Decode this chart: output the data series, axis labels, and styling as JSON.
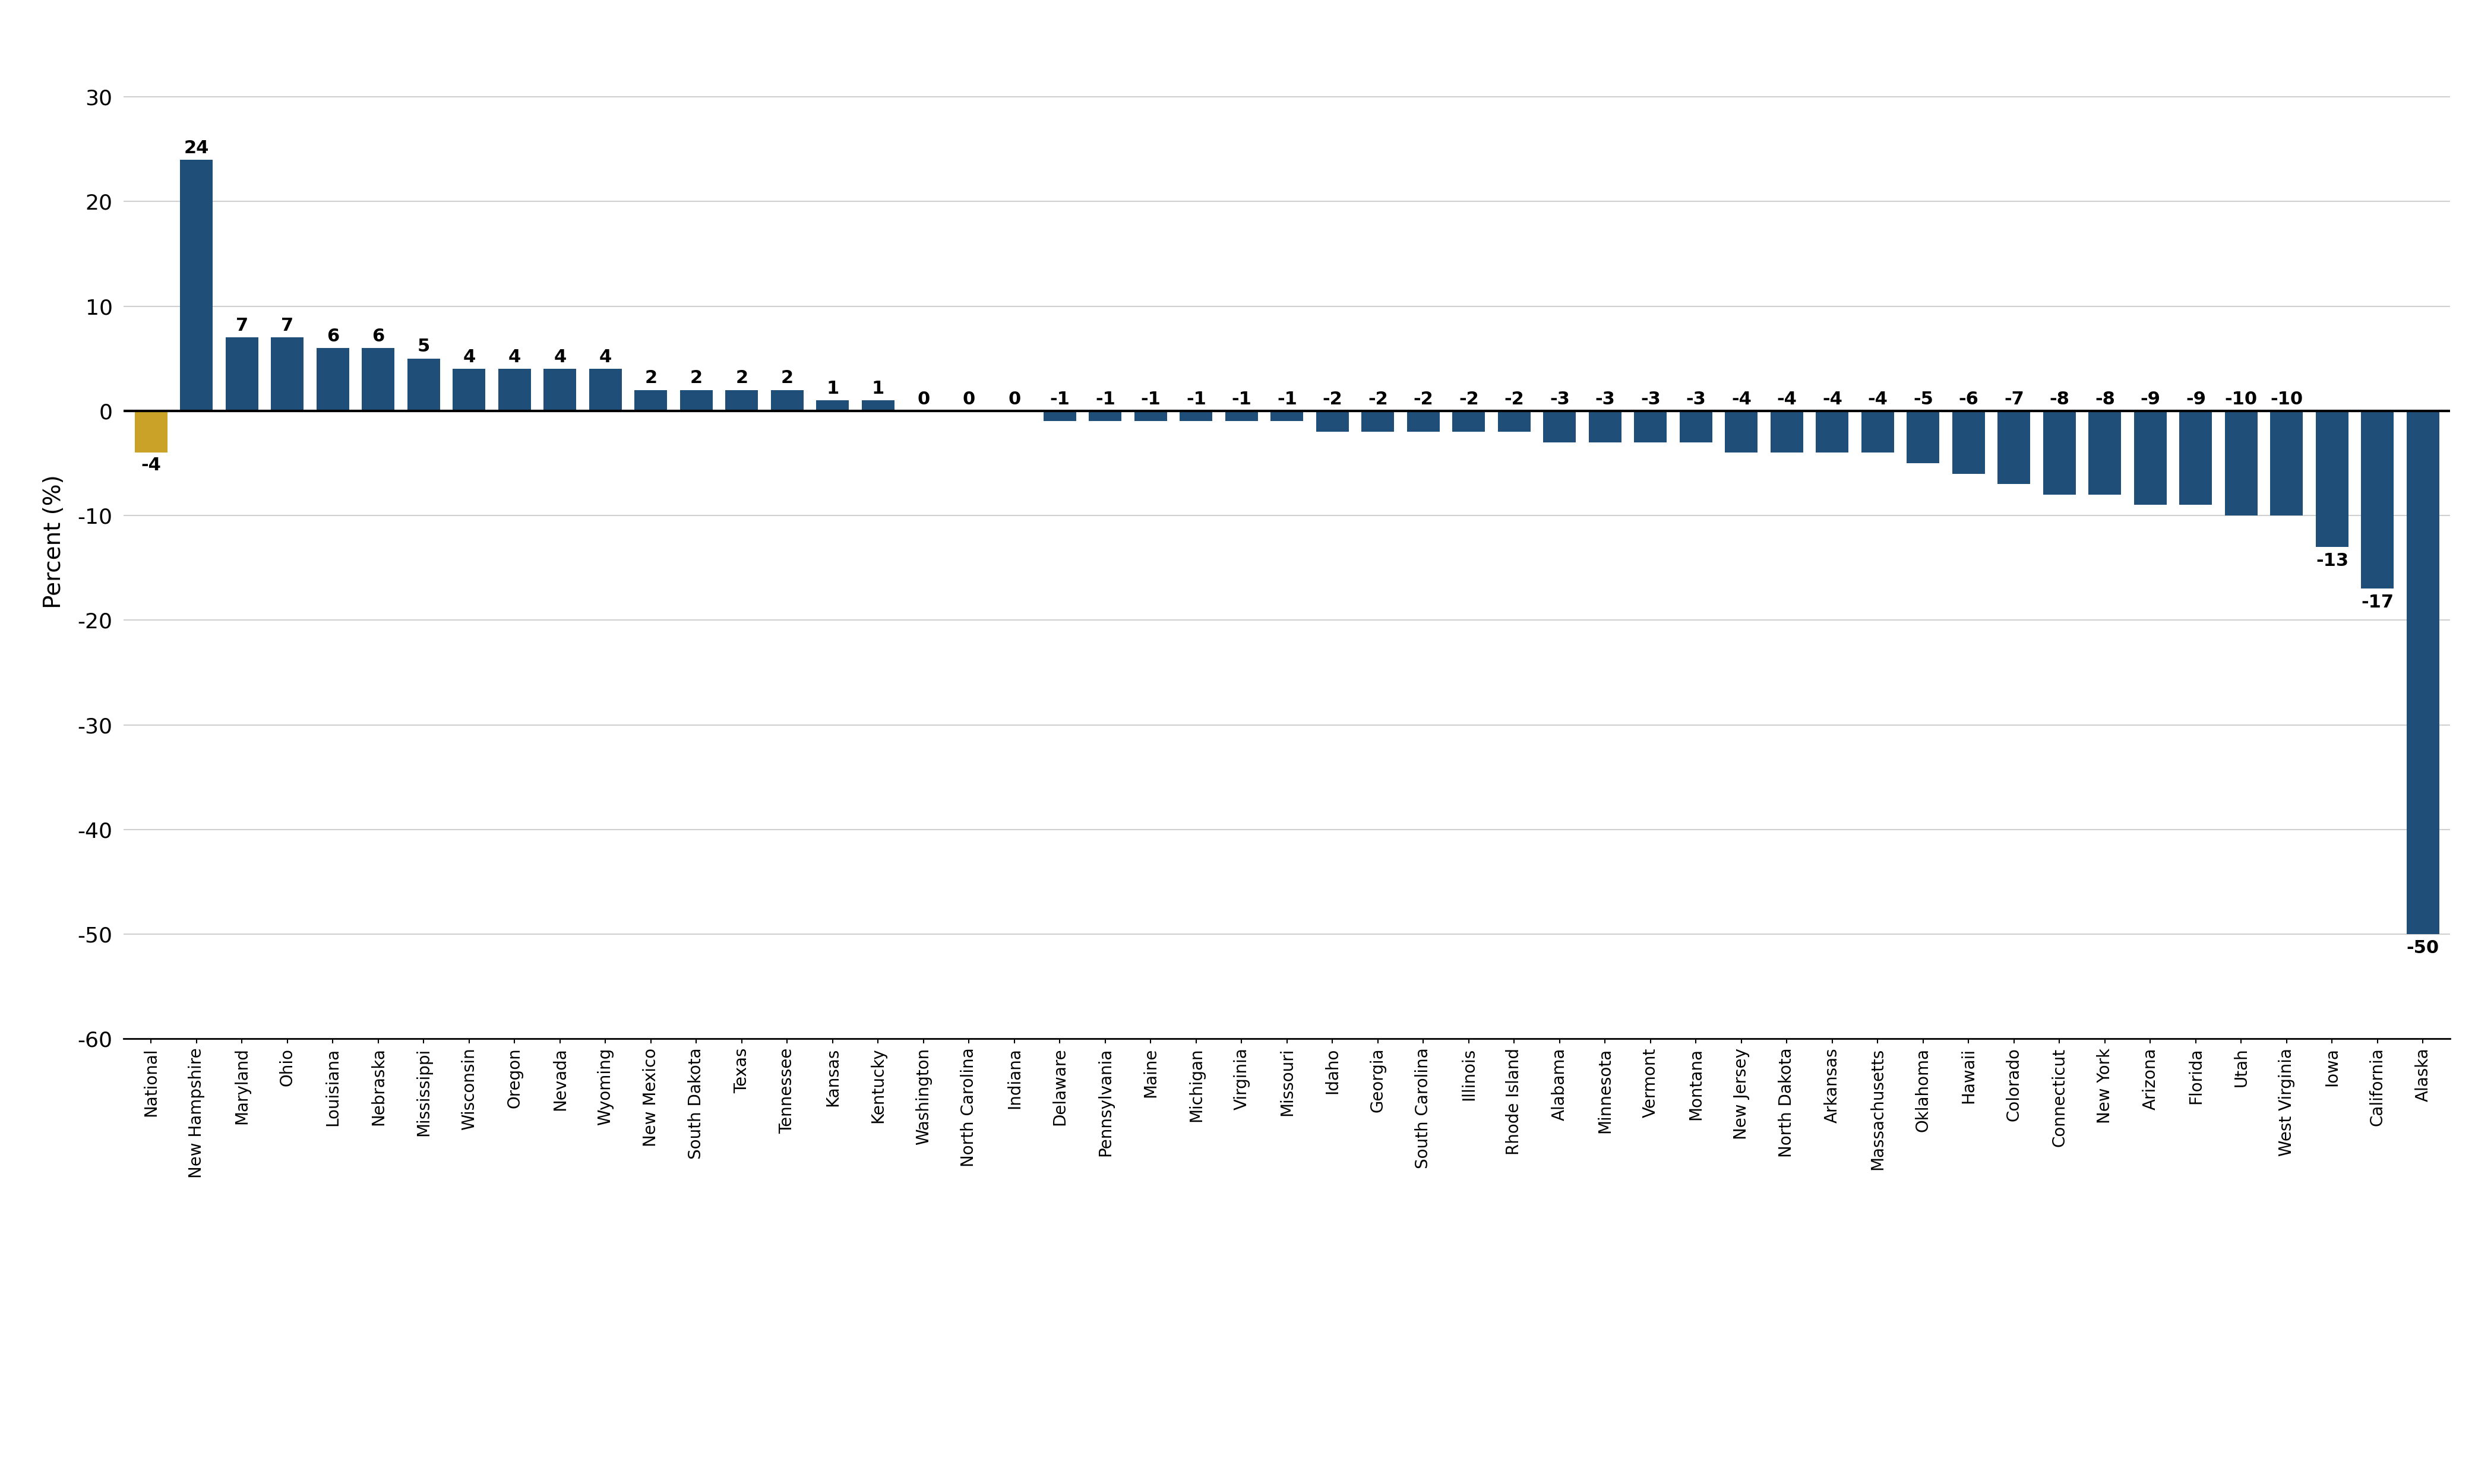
{
  "categories": [
    "National",
    "New Hampshire",
    "Maryland",
    "Ohio",
    "Louisiana",
    "Nebraska",
    "Mississippi",
    "Wisconsin",
    "Oregon",
    "Nevada",
    "Wyoming",
    "New Mexico",
    "South Dakota",
    "Texas",
    "Tennessee",
    "Kansas",
    "Kentucky",
    "Washington",
    "North Carolina",
    "Indiana",
    "Delaware",
    "Pennsylvania",
    "Maine",
    "Michigan",
    "Virginia",
    "Missouri",
    "Idaho",
    "Georgia",
    "South Carolina",
    "Illinois",
    "Rhode Island",
    "Alabama",
    "Minnesota",
    "Vermont",
    "Montana",
    "New Jersey",
    "North Dakota",
    "Arkansas",
    "Massachusetts",
    "Oklahoma",
    "Hawaii",
    "Colorado",
    "Connecticut",
    "New York",
    "Arizona",
    "Florida",
    "Utah",
    "West Virginia",
    "Iowa",
    "California",
    "Alaska"
  ],
  "values": [
    -4,
    24,
    7,
    7,
    6,
    6,
    5,
    4,
    4,
    4,
    4,
    2,
    2,
    2,
    2,
    1,
    1,
    0,
    0,
    0,
    -1,
    -1,
    -1,
    -1,
    -1,
    -1,
    -2,
    -2,
    -2,
    -2,
    -2,
    -3,
    -3,
    -3,
    -3,
    -4,
    -4,
    -4,
    -4,
    -5,
    -6,
    -7,
    -8,
    -8,
    -9,
    -9,
    -10,
    -10,
    -13,
    -17,
    -50
  ],
  "bar_color_gold": "#C9A227",
  "bar_color_blue": "#1F4E79",
  "ylabel": "Percent (%)",
  "ylim": [
    -60,
    35
  ],
  "yticks": [
    30,
    20,
    10,
    0,
    -10,
    -20,
    -30,
    -40,
    -50,
    -60
  ],
  "background_color": "#FFFFFF",
  "grid_color": "#D0D0D0",
  "label_fontsize": 22,
  "tick_fontsize": 26,
  "ylabel_fontsize": 28,
  "xtick_fontsize": 20
}
